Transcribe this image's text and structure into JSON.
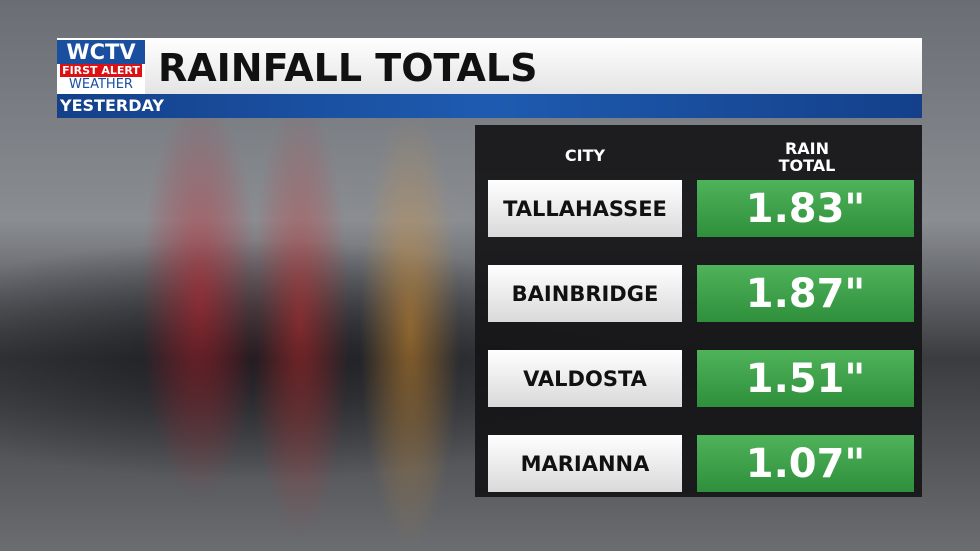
{
  "logo": {
    "station": "WCTV",
    "brand": "FIRST ALERT",
    "product": "WEATHER"
  },
  "header": {
    "title": "RAINFALL TOTALS",
    "subtitle": "YESTERDAY"
  },
  "table": {
    "columns": [
      "CITY",
      "RAIN TOTAL"
    ],
    "rows": [
      [
        "TALLAHASSEE",
        "1.83\""
      ],
      [
        "BAINBRIDGE",
        "1.87\""
      ],
      [
        "VALDOSTA",
        "1.51\""
      ],
      [
        "MARIANNA",
        "1.07\""
      ]
    ]
  }
}
